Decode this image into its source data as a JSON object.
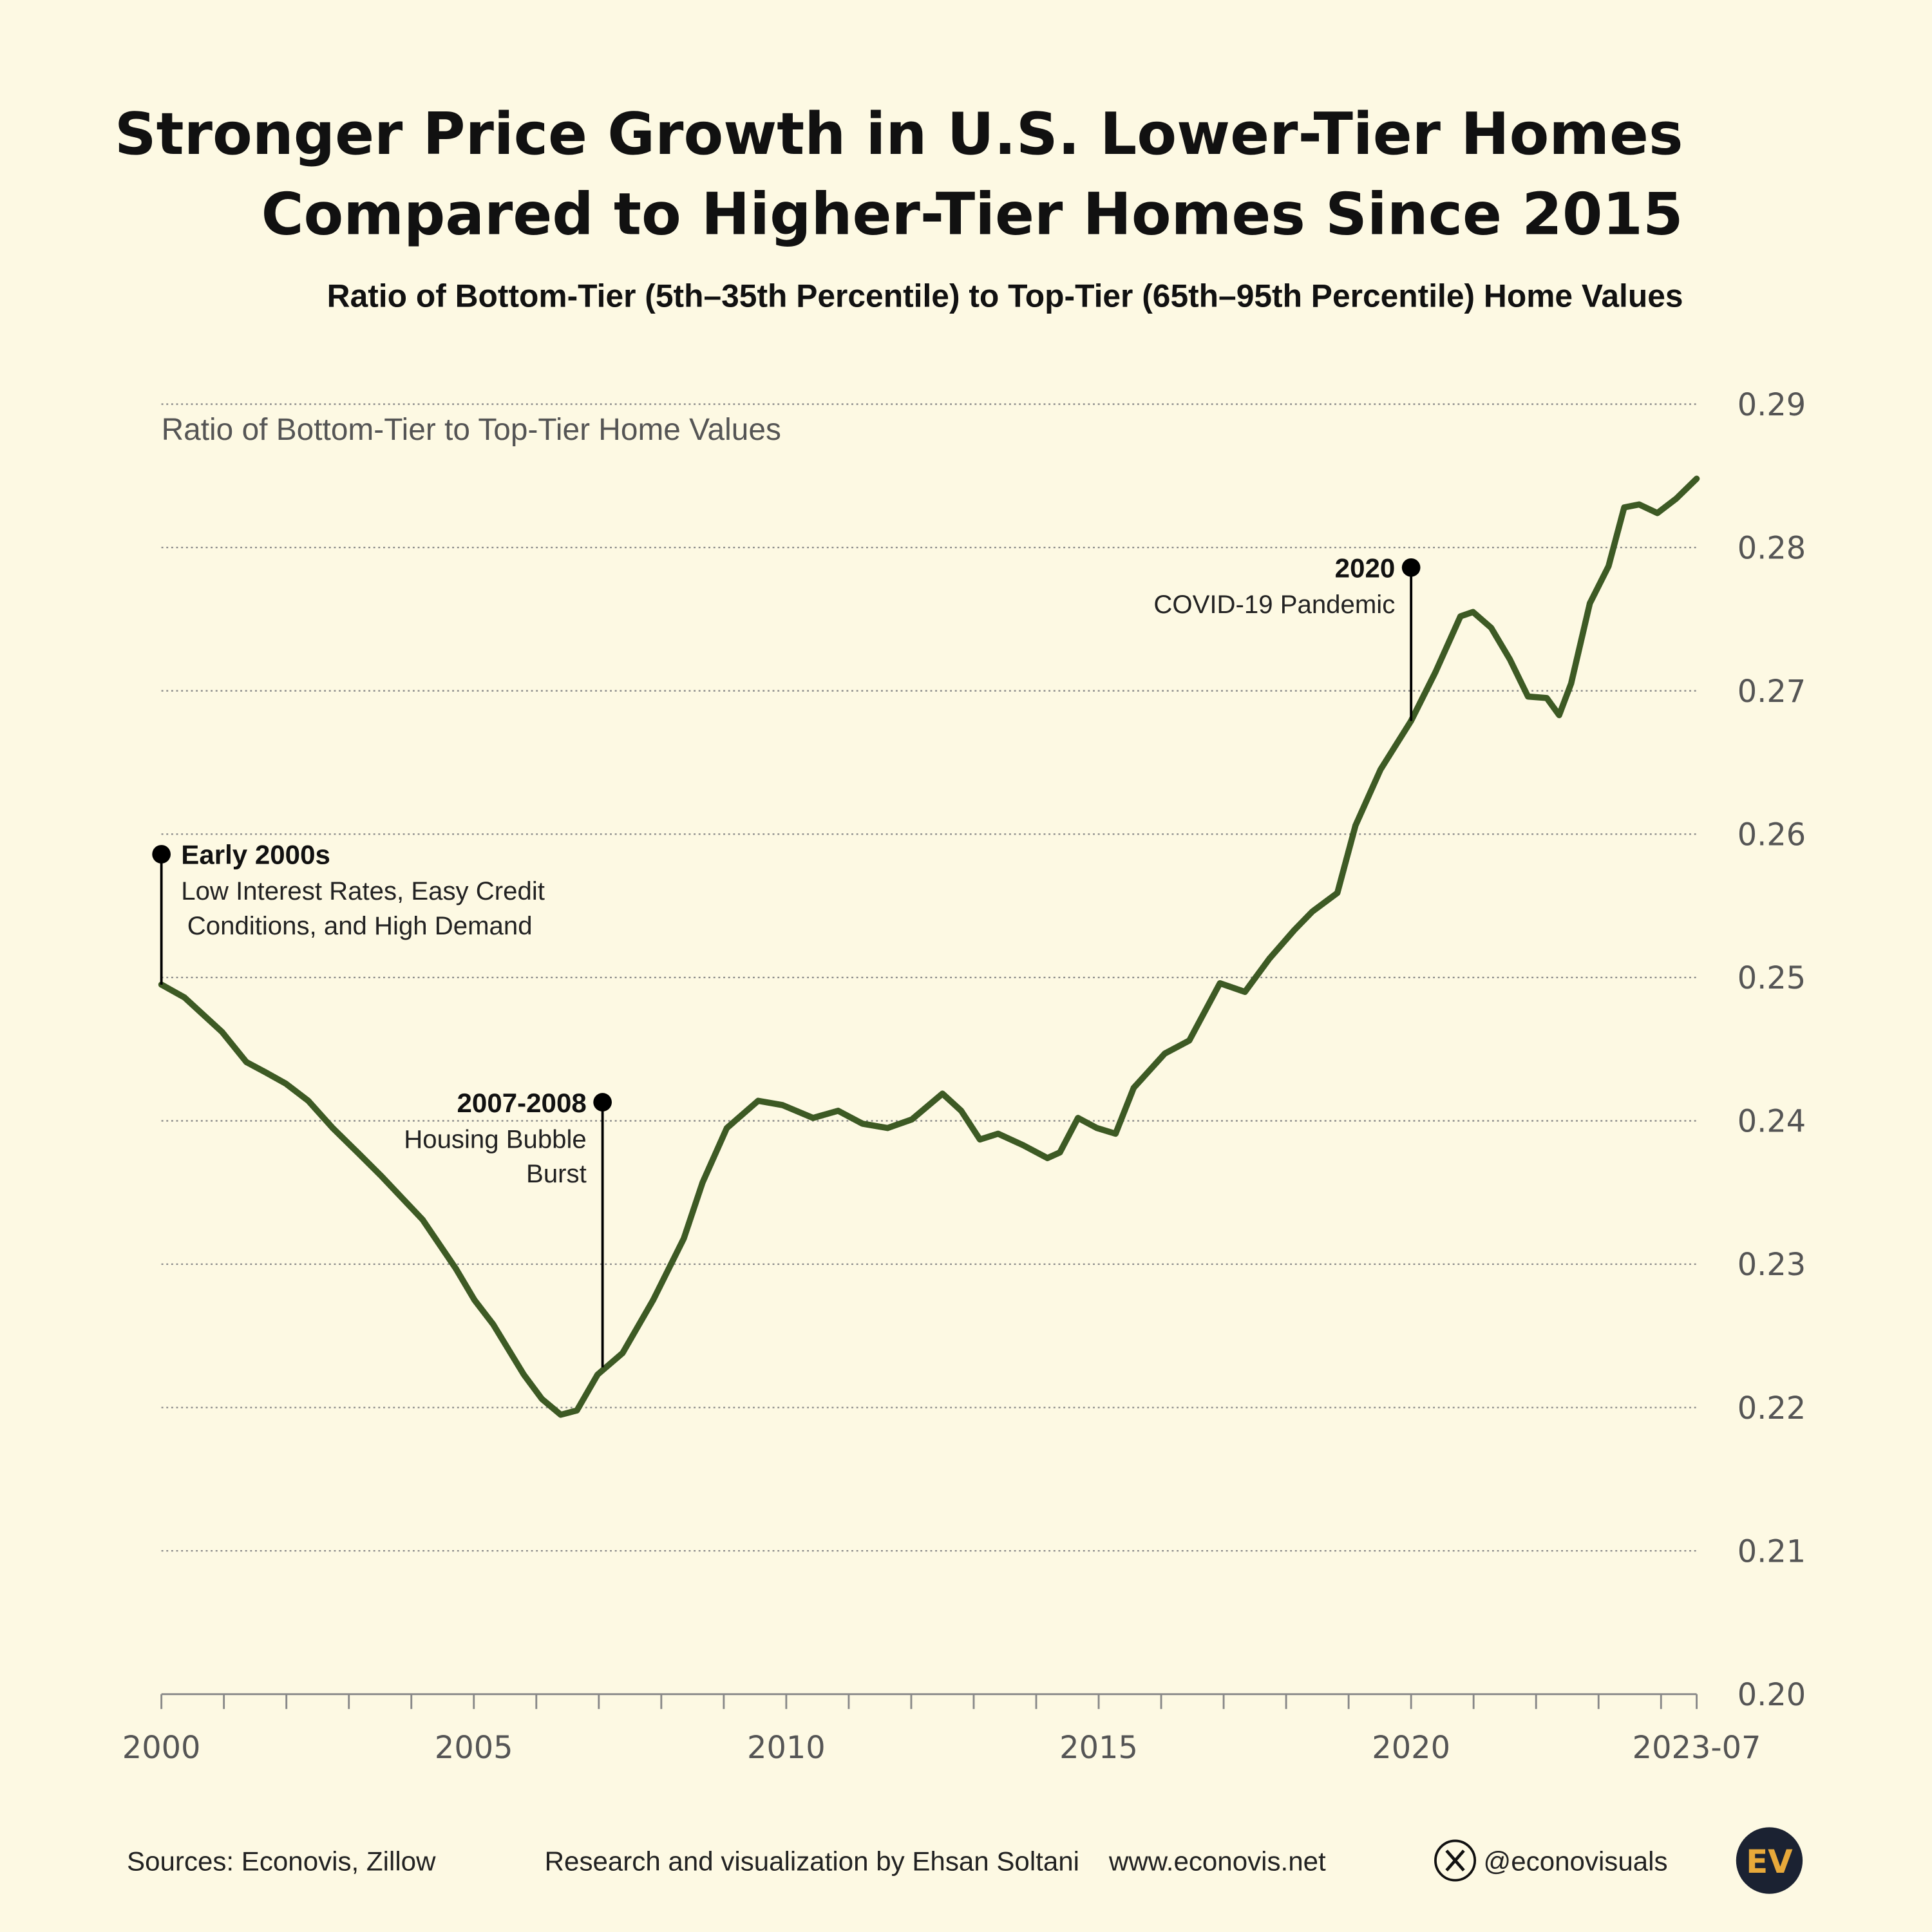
{
  "title_line1": "Stronger Price Growth in U.S. Lower-Tier Homes",
  "title_line2": "Compared to Higher-Tier Homes Since 2015",
  "subtitle": "Ratio of Bottom-Tier (5th–35th Percentile) to Top-Tier (65th–95th Percentile) Home Values",
  "colors": {
    "background": "#fdf9e3",
    "line": "#3d5a24",
    "grid": "#888888",
    "annotation": "#000000"
  },
  "chart_data": {
    "type": "line",
    "title": "Stronger Price Growth in U.S. Lower-Tier Homes Compared to Higher-Tier Homes Since 2015",
    "ylabel": "Ratio of Bottom-Tier to Top-Tier Home Values",
    "xlabel": "",
    "ylim": [
      0.2,
      0.29
    ],
    "xlim": [
      2000,
      2024.57
    ],
    "y_ticks": [
      "0.20",
      "0.21",
      "0.22",
      "0.23",
      "0.24",
      "0.25",
      "0.26",
      "0.27",
      "0.28",
      "0.29"
    ],
    "x_tick_labels": [
      {
        "x": 2000,
        "label": "2000"
      },
      {
        "x": 2005,
        "label": "2005"
      },
      {
        "x": 2010,
        "label": "2010"
      },
      {
        "x": 2015,
        "label": "2015"
      },
      {
        "x": 2020,
        "label": "2020"
      },
      {
        "x": 2024.57,
        "label": "2023-07"
      }
    ],
    "grid": "horizontal dotted",
    "y_axis_position": "right",
    "series": [
      {
        "x": [
          2000.0,
          2000.37,
          2000.97,
          2001.36,
          2001.66,
          2001.99,
          2002.35,
          2002.74,
          2003.14,
          2003.53,
          2004.18,
          2004.71,
          2005.01,
          2005.31,
          2005.8,
          2006.09,
          2006.39,
          2006.65,
          2006.98,
          2007.38,
          2007.87,
          2008.36,
          2008.66,
          2009.05,
          2009.55,
          2009.94,
          2010.43,
          2010.83,
          2011.22,
          2011.62,
          2012.01,
          2012.5,
          2012.8,
          2013.1,
          2013.39,
          2013.79,
          2014.18,
          2014.38,
          2014.67,
          2014.97,
          2015.27,
          2015.56,
          2016.06,
          2016.45,
          2016.94,
          2017.34,
          2017.73,
          2018.13,
          2018.42,
          2018.82,
          2019.11,
          2019.51,
          2020.0,
          2020.39,
          2020.79,
          2020.99,
          2021.28,
          2021.58,
          2021.87,
          2022.17,
          2022.37,
          2022.56,
          2022.86,
          2023.16,
          2023.41,
          2023.65,
          2023.94,
          2024.24,
          2024.57
        ],
        "values": [
          0.2495,
          0.2486,
          0.2462,
          0.2441,
          0.2434,
          0.2426,
          0.2414,
          0.2395,
          0.2378,
          0.2361,
          0.2331,
          0.2297,
          0.2275,
          0.2258,
          0.2223,
          0.2206,
          0.2195,
          0.2198,
          0.2223,
          0.2238,
          0.2275,
          0.2318,
          0.2357,
          0.2395,
          0.2414,
          0.2411,
          0.2402,
          0.2407,
          0.2398,
          0.2395,
          0.2401,
          0.2419,
          0.2407,
          0.2387,
          0.2391,
          0.2383,
          0.2374,
          0.2378,
          0.2402,
          0.2395,
          0.2391,
          0.2423,
          0.2447,
          0.2456,
          0.2496,
          0.249,
          0.2513,
          0.2533,
          0.2546,
          0.2559,
          0.2606,
          0.2645,
          0.2679,
          0.2713,
          0.2752,
          0.2755,
          0.2744,
          0.2722,
          0.2696,
          0.2695,
          0.2683,
          0.2705,
          0.2761,
          0.2787,
          0.2828,
          0.283,
          0.2824,
          0.2834,
          0.2848
        ]
      }
    ],
    "annotations": [
      {
        "x": 2000.0,
        "y": 0.2495,
        "dot_y": 0.2586,
        "heading": "Early 2000s",
        "lines": [
          "Low Interest Rates, Easy Credit",
          "Conditions, and High Demand"
        ]
      },
      {
        "x": 2007.06,
        "y": 0.2228,
        "dot_y": 0.2413,
        "heading": "2007-2008",
        "lines": [
          "Housing Bubble",
          "Burst"
        ]
      },
      {
        "x": 2020.0,
        "y": 0.2679,
        "dot_y": 0.2786,
        "heading": "2020",
        "lines": [
          "COVID-19 Pandemic"
        ]
      }
    ]
  },
  "footer": {
    "sources": "Sources: Econovis, Zillow",
    "credit": "Research and visualization by Ehsan Soltani",
    "website": "www.econovis.net",
    "handle": "@econovisuals",
    "logo_text": "EV"
  }
}
